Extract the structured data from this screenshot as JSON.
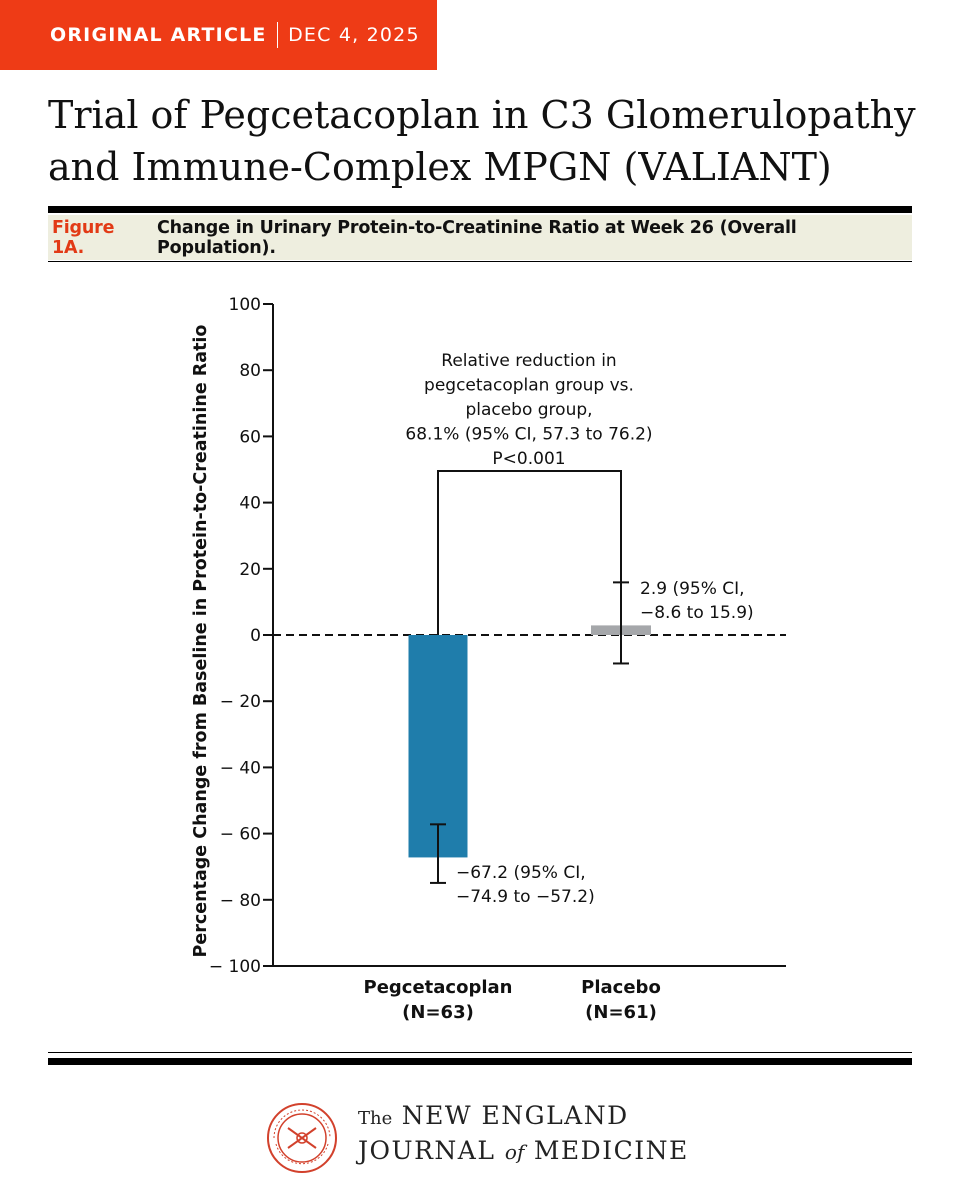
{
  "header": {
    "article_type": "ORIGINAL ARTICLE",
    "date": "DEC 4, 2025",
    "title_line1": "Trial of Pegcetacoplan in C3 Glomerulopathy",
    "title_line2": "and Immune-Complex MPGN (VALIANT)"
  },
  "figure": {
    "label": "Figure 1A.",
    "caption": "Change in Urinary Protein-to-Creatinine Ratio at Week 26 (Overall Population)."
  },
  "colors": {
    "brand_orange": "#ee3b16",
    "figure_label": "#e23a16",
    "caption_band": "#eeeedf",
    "pegcetacoplan_bar": "#1f7dab",
    "placebo_bar": "#a5a7aa"
  },
  "chart_data": {
    "type": "bar",
    "ylabel": "Percentage Change from Baseline in Protein-to-Creatinine Ratio",
    "ylim": [
      -100,
      100
    ],
    "yticks": [
      100,
      80,
      60,
      40,
      20,
      0,
      -20,
      -40,
      -60,
      -80,
      -100
    ],
    "yticklabels": [
      "100",
      "80",
      "60",
      "40",
      "20",
      "0",
      "− 20",
      "− 40",
      "− 60",
      "− 80",
      "− 100"
    ],
    "grid": false,
    "reference_line": 0,
    "categories": [
      {
        "name": "Pegcetacoplan",
        "n_label": "(N=63)"
      },
      {
        "name": "Placebo",
        "n_label": "(N=61)"
      }
    ],
    "values": [
      -67.2,
      2.9
    ],
    "ci_low": [
      -74.9,
      -8.6
    ],
    "ci_high": [
      -57.2,
      15.9
    ],
    "data_labels": [
      [
        "−67.2 (95% CI,",
        "−74.9 to −57.2)"
      ],
      [
        "2.9 (95% CI,",
        "−8.6 to 15.9)"
      ]
    ],
    "annotation": {
      "lines": [
        "Relative reduction in",
        "pegcetacoplan group vs.",
        "placebo group,",
        "68.1% (95% CI, 57.3 to 76.2)",
        "P<0.001"
      ],
      "relative_reduction": 68.1,
      "ci": [
        57.3,
        76.2
      ],
      "p_value": "P<0.001"
    }
  },
  "footer": {
    "the": "The",
    "line1": "NEW ENGLAND",
    "journal": "JOURNAL",
    "of": "of",
    "medicine": "MEDICINE"
  }
}
